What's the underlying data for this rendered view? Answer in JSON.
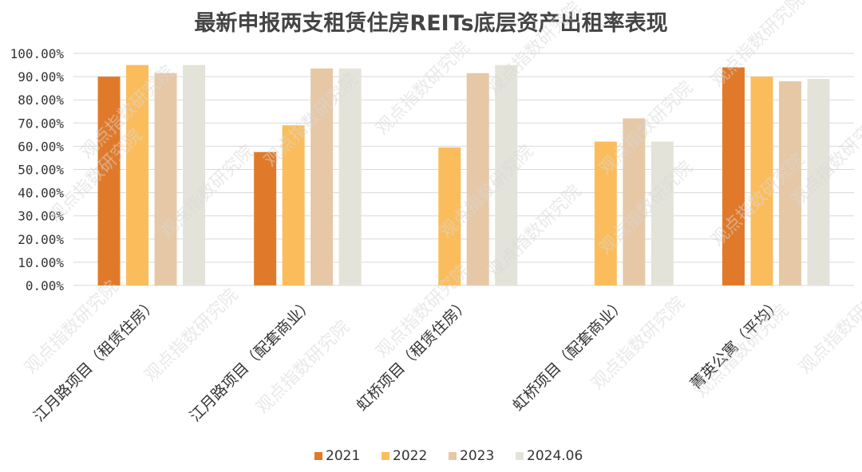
{
  "chart_data": {
    "type": "bar",
    "title": "最新申报两支租赁住房REITs底层资产出租率表现",
    "categories": [
      "江月路项目（租赁住房）",
      "江月路项目（配套商业）",
      "虹桥项目（租赁住房）",
      "虹桥项目（配套商业）",
      "菁英公寓（平均）"
    ],
    "series": [
      {
        "name": "2021",
        "color": "#e07a2a",
        "values": [
          90.0,
          57.5,
          null,
          null,
          94.0
        ]
      },
      {
        "name": "2022",
        "color": "#fbbd5c",
        "values": [
          95.0,
          69.0,
          59.5,
          62.0,
          90.0
        ]
      },
      {
        "name": "2023",
        "color": "#e6c8a6",
        "values": [
          91.5,
          93.5,
          91.5,
          72.0,
          88.0
        ]
      },
      {
        "name": "2024.06",
        "color": "#e4e3d9",
        "values": [
          95.0,
          93.5,
          95.0,
          62.0,
          89.0
        ]
      }
    ],
    "ylim": [
      0,
      100
    ],
    "yticks": [
      "0.00%",
      "10.00%",
      "20.00%",
      "30.00%",
      "40.00%",
      "50.00%",
      "60.00%",
      "70.00%",
      "80.00%",
      "90.00%",
      "100.00%"
    ],
    "grid": true,
    "legend_position": "bottom-center",
    "xlabel": "",
    "ylabel": ""
  },
  "watermark_text": "观点指数研究院"
}
